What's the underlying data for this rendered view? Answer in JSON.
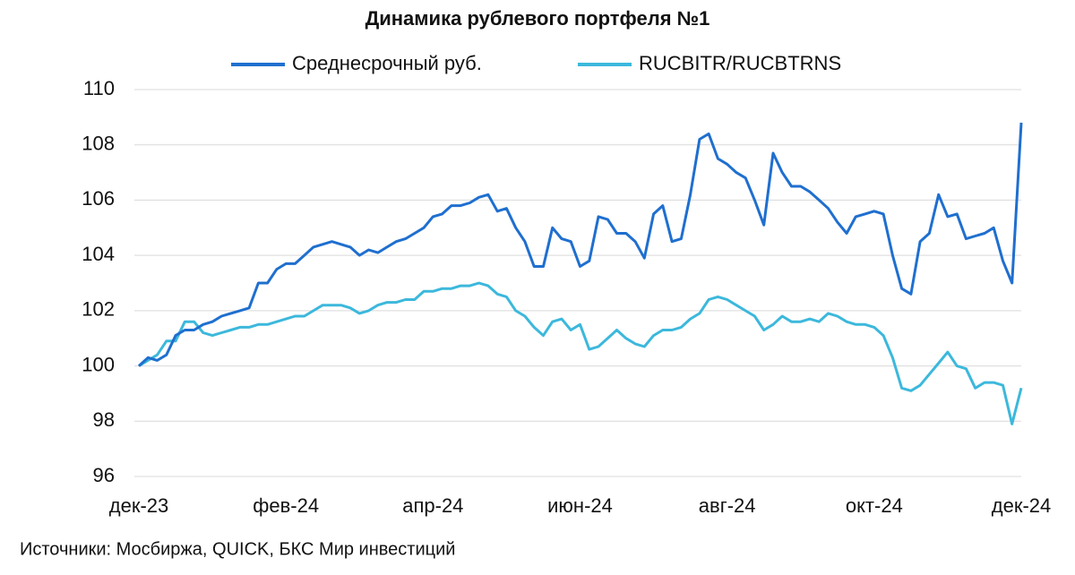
{
  "chart_data": {
    "type": "line",
    "title": "Динамика рублевого портфеля №1",
    "source": "Источники: Мосбиржа, QUICK, БКС Мир инвестиций",
    "categories": [
      "дек-23",
      null,
      null,
      null,
      null,
      null,
      null,
      null,
      null,
      null,
      null,
      null,
      null,
      null,
      null,
      null,
      "фев-24",
      null,
      null,
      null,
      null,
      null,
      null,
      null,
      null,
      null,
      null,
      null,
      null,
      null,
      null,
      null,
      "апр-24",
      null,
      null,
      null,
      null,
      null,
      null,
      null,
      null,
      null,
      null,
      null,
      null,
      null,
      null,
      null,
      "июн-24",
      null,
      null,
      null,
      null,
      null,
      null,
      null,
      null,
      null,
      null,
      null,
      null,
      null,
      null,
      null,
      "авг-24",
      null,
      null,
      null,
      null,
      null,
      null,
      null,
      null,
      null,
      null,
      null,
      null,
      null,
      null,
      null,
      "окт-24",
      null,
      null,
      null,
      null,
      null,
      null,
      null,
      null,
      null,
      null,
      null,
      null,
      null,
      null,
      null,
      "дек-24"
    ],
    "series": [
      {
        "name": "Среднесрочный руб.",
        "color": "#1f6fcf",
        "values": [
          100.0,
          100.3,
          100.2,
          100.4,
          101.1,
          101.3,
          101.3,
          101.5,
          101.6,
          101.8,
          101.9,
          102.0,
          102.1,
          103.0,
          103.0,
          103.5,
          103.7,
          103.7,
          104.0,
          104.3,
          104.4,
          104.5,
          104.4,
          104.3,
          104.0,
          104.2,
          104.1,
          104.3,
          104.5,
          104.6,
          104.8,
          105.0,
          105.4,
          105.5,
          105.8,
          105.8,
          105.9,
          106.1,
          106.2,
          105.6,
          105.7,
          105.0,
          104.5,
          103.6,
          103.6,
          105.0,
          104.6,
          104.5,
          103.6,
          103.8,
          105.4,
          105.3,
          104.8,
          104.8,
          104.5,
          103.9,
          105.5,
          105.8,
          104.5,
          104.6,
          106.2,
          108.2,
          108.4,
          107.5,
          107.3,
          107.0,
          106.8,
          106.0,
          105.1,
          107.7,
          107.0,
          106.5,
          106.5,
          106.3,
          106.0,
          105.7,
          105.2,
          104.8,
          105.4,
          105.5,
          105.6,
          105.5,
          104.0,
          102.8,
          102.6,
          104.5,
          104.8,
          106.2,
          105.4,
          105.5,
          104.6,
          104.7,
          104.8,
          105.0,
          103.8,
          103.0,
          108.8
        ]
      },
      {
        "name": "RUCBITR/RUCBTRNS",
        "color": "#3cb8dc",
        "values": [
          100.0,
          100.2,
          100.4,
          100.9,
          100.9,
          101.6,
          101.6,
          101.2,
          101.1,
          101.2,
          101.3,
          101.4,
          101.4,
          101.5,
          101.5,
          101.6,
          101.7,
          101.8,
          101.8,
          102.0,
          102.2,
          102.2,
          102.2,
          102.1,
          101.9,
          102.0,
          102.2,
          102.3,
          102.3,
          102.4,
          102.4,
          102.7,
          102.7,
          102.8,
          102.8,
          102.9,
          102.9,
          103.0,
          102.9,
          102.6,
          102.5,
          102.0,
          101.8,
          101.4,
          101.1,
          101.6,
          101.7,
          101.3,
          101.5,
          100.6,
          100.7,
          101.0,
          101.3,
          101.0,
          100.8,
          100.7,
          101.1,
          101.3,
          101.3,
          101.4,
          101.7,
          101.9,
          102.4,
          102.5,
          102.4,
          102.2,
          102.0,
          101.8,
          101.3,
          101.5,
          101.8,
          101.6,
          101.6,
          101.7,
          101.6,
          101.9,
          101.8,
          101.6,
          101.5,
          101.5,
          101.4,
          101.1,
          100.3,
          99.2,
          99.1,
          99.3,
          99.7,
          100.1,
          100.5,
          100.0,
          99.9,
          99.2,
          99.4,
          99.4,
          99.3,
          97.9,
          99.2
        ]
      }
    ],
    "ylim": [
      96,
      110
    ],
    "yticks": [
      96,
      98,
      100,
      102,
      104,
      106,
      108,
      110
    ],
    "grid": true
  }
}
